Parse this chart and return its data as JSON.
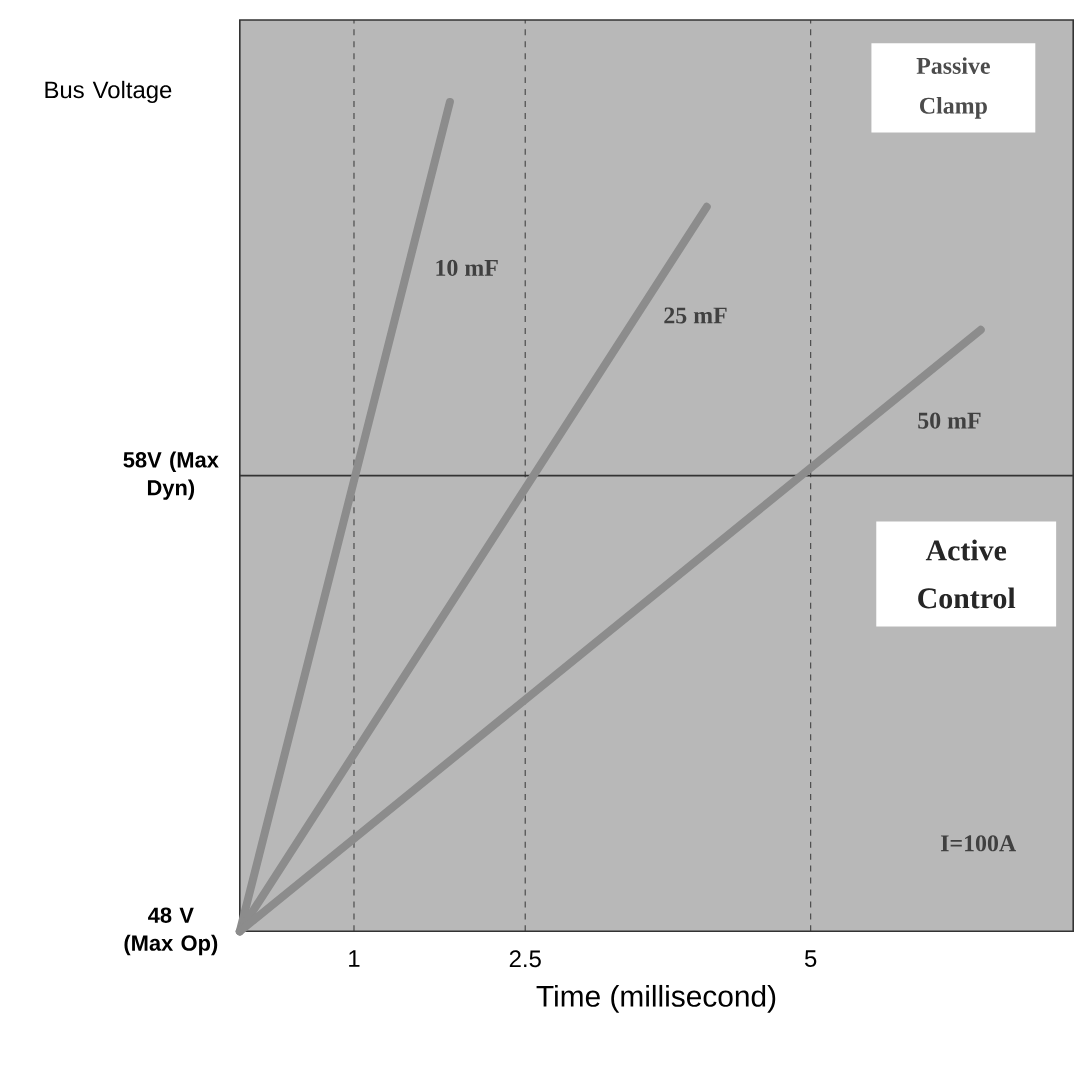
{
  "chart_data": {
    "type": "line",
    "xlabel": "Time (millisecond)",
    "ylabel": "Bus Voltage",
    "xlim": [
      0,
      7.3
    ],
    "ylim": [
      48,
      68
    ],
    "xticks": [
      1,
      2.5,
      5
    ],
    "yticks": [
      {
        "value": 48,
        "label": "48 V (Max Op)"
      },
      {
        "value": 58,
        "label": "58V (Max Dyn)"
      }
    ],
    "grid": "x",
    "ref_lines": [
      {
        "axis": "y",
        "value": 58,
        "color": "#333333"
      }
    ],
    "series": [
      {
        "name": "10 mF",
        "color": "#8c8c8c",
        "x": [
          0,
          1.84
        ],
        "values": [
          48,
          66.2
        ]
      },
      {
        "name": "25 mF",
        "color": "#8c8c8c",
        "x": [
          0,
          4.09
        ],
        "values": [
          48,
          63.9
        ]
      },
      {
        "name": "50 mF",
        "color": "#8c8c8c",
        "x": [
          0,
          6.49
        ],
        "values": [
          48,
          61.2
        ]
      }
    ],
    "annotations": [
      "Passive Clamp",
      "Active Control",
      "I=100A"
    ],
    "legend": false
  }
}
